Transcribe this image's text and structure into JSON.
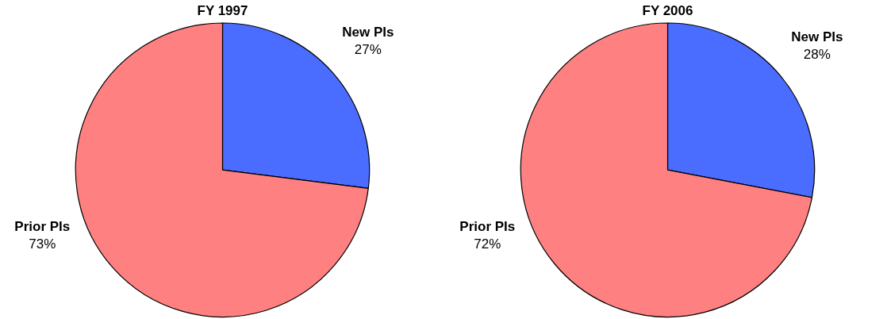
{
  "chart_data": [
    {
      "type": "pie",
      "title": "FY 1997",
      "categories": [
        "New PIs",
        "Prior PIs"
      ],
      "values": [
        27,
        73
      ],
      "colors": [
        "#4a6cff",
        "#ff8080"
      ],
      "value_labels": [
        "27%",
        "73%"
      ]
    },
    {
      "type": "pie",
      "title": "FY 2006",
      "categories": [
        "New PIs",
        "Prior PIs"
      ],
      "values": [
        28,
        72
      ],
      "colors": [
        "#4a6cff",
        "#ff8080"
      ],
      "value_labels": [
        "28%",
        "72%"
      ]
    }
  ]
}
